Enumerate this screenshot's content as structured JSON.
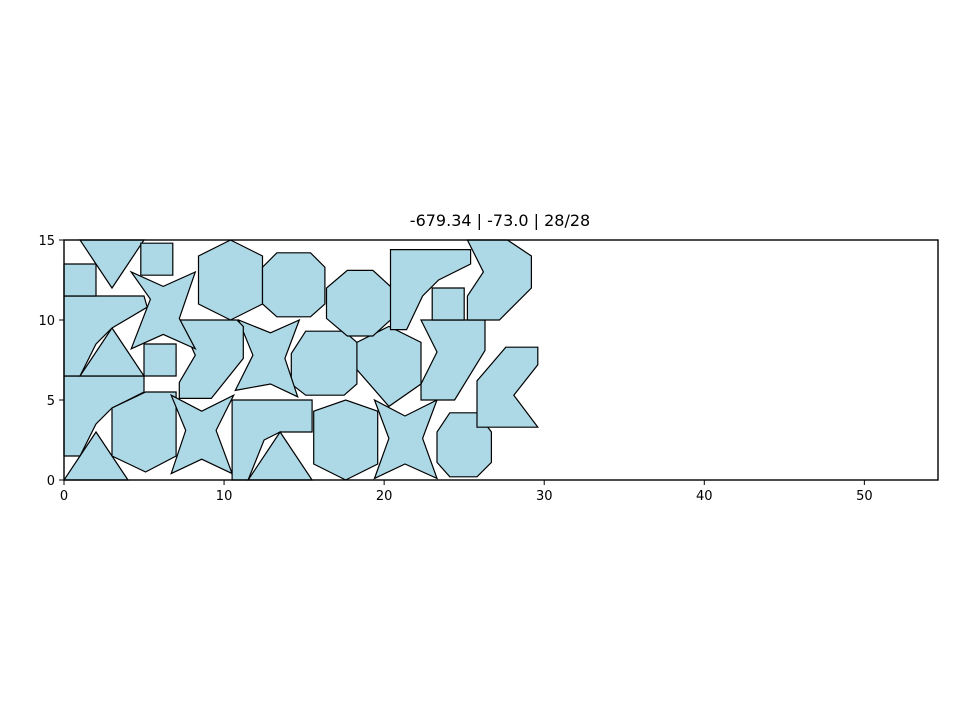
{
  "chart_data": {
    "type": "polygon-packing",
    "title": "-679.34 | -73.0 | 28/28",
    "xlabel": "",
    "ylabel": "",
    "xlim": [
      0,
      54.6
    ],
    "ylim": [
      0,
      15
    ],
    "xticks": [
      0,
      10,
      20,
      30,
      40,
      50
    ],
    "yticks": [
      0,
      5,
      10,
      15
    ],
    "grid": false,
    "colors": {
      "fill": "#add8e6",
      "edge": "#000000"
    },
    "shapes": [
      {
        "kind": "triangle",
        "points": [
          [
            0,
            0
          ],
          [
            4,
            0
          ],
          [
            2,
            3
          ]
        ]
      },
      {
        "kind": "l-shape",
        "points": [
          [
            0,
            1.5
          ],
          [
            0,
            6.5
          ],
          [
            5,
            6.5
          ],
          [
            5,
            5.5
          ],
          [
            3,
            4.5
          ],
          [
            2,
            3.5
          ],
          [
            1,
            1.5
          ]
        ]
      },
      {
        "kind": "hexagon",
        "points": [
          [
            3,
            4.5
          ],
          [
            3,
            1.5
          ],
          [
            5.1,
            0.5
          ],
          [
            7,
            1.5
          ],
          [
            7,
            5.5
          ],
          [
            5.1,
            5.5
          ]
        ]
      },
      {
        "kind": "star4",
        "points": [
          [
            6.7,
            0.4
          ],
          [
            8.6,
            1.3
          ],
          [
            10.5,
            0.4
          ],
          [
            9.5,
            3.1
          ],
          [
            10.6,
            5.3
          ],
          [
            8.6,
            4.3
          ],
          [
            6.7,
            5.3
          ],
          [
            7.6,
            3.1
          ]
        ]
      },
      {
        "kind": "l-shape",
        "points": [
          [
            10.5,
            0
          ],
          [
            10.5,
            5
          ],
          [
            15.5,
            5
          ],
          [
            15.5,
            3
          ],
          [
            13.5,
            3
          ],
          [
            12.5,
            2.5
          ],
          [
            11.5,
            0
          ]
        ]
      },
      {
        "kind": "triangle",
        "points": [
          [
            11.5,
            0
          ],
          [
            15.5,
            0
          ],
          [
            13.5,
            3
          ]
        ]
      },
      {
        "kind": "hexagon",
        "points": [
          [
            15.6,
            1
          ],
          [
            17.6,
            0
          ],
          [
            19.6,
            1
          ],
          [
            19.6,
            4.3
          ],
          [
            17.6,
            5
          ],
          [
            15.6,
            4.3
          ]
        ]
      },
      {
        "kind": "star4",
        "points": [
          [
            19.4,
            0.1
          ],
          [
            21.3,
            1
          ],
          [
            23.3,
            0.1
          ],
          [
            22.4,
            2.6
          ],
          [
            23.3,
            5
          ],
          [
            21.3,
            4
          ],
          [
            19.4,
            5
          ],
          [
            20.3,
            2.6
          ]
        ]
      },
      {
        "kind": "octagon",
        "points": [
          [
            23.3,
            1.1
          ],
          [
            24.1,
            0.2
          ],
          [
            25.8,
            0.2
          ],
          [
            26.7,
            1.1
          ],
          [
            26.7,
            3
          ],
          [
            25.8,
            4.2
          ],
          [
            24.1,
            4.2
          ],
          [
            23.3,
            3
          ]
        ]
      },
      {
        "kind": "chevron",
        "points": [
          [
            25.8,
            3.3
          ],
          [
            25.8,
            6.2
          ],
          [
            27.6,
            8.3
          ],
          [
            29.6,
            8.3
          ],
          [
            29.6,
            7.2
          ],
          [
            28.1,
            5.3
          ],
          [
            29.6,
            3.3
          ]
        ]
      },
      {
        "kind": "chevron",
        "points": [
          [
            22.3,
            5
          ],
          [
            22.3,
            6
          ],
          [
            23.3,
            8
          ],
          [
            22.3,
            10
          ],
          [
            26.3,
            10
          ],
          [
            26.3,
            8.1
          ],
          [
            24.4,
            5
          ]
        ]
      },
      {
        "kind": "hexagon",
        "points": [
          [
            18.3,
            6.9
          ],
          [
            18.3,
            8.6
          ],
          [
            20.3,
            9.6
          ],
          [
            22.3,
            8.6
          ],
          [
            22.3,
            6
          ],
          [
            20.3,
            4.6
          ]
        ]
      },
      {
        "kind": "octagon",
        "points": [
          [
            14.2,
            7.9
          ],
          [
            14.2,
            6
          ],
          [
            15.1,
            5.3
          ],
          [
            17.5,
            5.3
          ],
          [
            18.3,
            6
          ],
          [
            18.3,
            8.6
          ],
          [
            17.5,
            9.3
          ],
          [
            15.1,
            9.3
          ]
        ]
      },
      {
        "kind": "star4",
        "points": [
          [
            10.7,
            5.6
          ],
          [
            11.8,
            7.8
          ],
          [
            10.9,
            10
          ],
          [
            12.9,
            9.2
          ],
          [
            14.7,
            10
          ],
          [
            13.8,
            7.6
          ],
          [
            14.6,
            5.2
          ],
          [
            12.9,
            6
          ]
        ]
      },
      {
        "kind": "chevron",
        "points": [
          [
            7.2,
            5.1
          ],
          [
            7.2,
            6.1
          ],
          [
            8.2,
            7.8
          ],
          [
            7.2,
            10
          ],
          [
            10.8,
            10
          ],
          [
            11.2,
            9.6
          ],
          [
            11.2,
            7.6
          ],
          [
            9.2,
            5.1
          ]
        ]
      },
      {
        "kind": "square",
        "points": [
          [
            5,
            6.5
          ],
          [
            7,
            6.5
          ],
          [
            7,
            8.5
          ],
          [
            5,
            8.5
          ]
        ]
      },
      {
        "kind": "triangle",
        "points": [
          [
            1,
            6.5
          ],
          [
            5,
            6.5
          ],
          [
            3,
            9.5
          ]
        ]
      },
      {
        "kind": "l-shape",
        "points": [
          [
            0,
            6.5
          ],
          [
            0,
            11.5
          ],
          [
            5,
            11.5
          ],
          [
            5.2,
            10.8
          ],
          [
            3,
            9.5
          ],
          [
            2,
            8.5
          ],
          [
            1,
            6.5
          ]
        ]
      },
      {
        "kind": "square",
        "points": [
          [
            0,
            11.5
          ],
          [
            2,
            11.5
          ],
          [
            2,
            13.5
          ],
          [
            0,
            13.5
          ]
        ]
      },
      {
        "kind": "triangle",
        "points": [
          [
            1,
            15
          ],
          [
            5,
            15
          ],
          [
            3,
            12
          ]
        ]
      },
      {
        "kind": "square",
        "points": [
          [
            4.8,
            12.8
          ],
          [
            6.8,
            12.8
          ],
          [
            6.8,
            14.8
          ],
          [
            4.8,
            14.8
          ]
        ]
      },
      {
        "kind": "star4",
        "points": [
          [
            4.2,
            13
          ],
          [
            5.4,
            11.3
          ],
          [
            4.2,
            8.2
          ],
          [
            6.2,
            9.1
          ],
          [
            8.2,
            8.2
          ],
          [
            7.2,
            10.1
          ],
          [
            8.2,
            13
          ],
          [
            6.2,
            12.1
          ]
        ]
      },
      {
        "kind": "hexagon",
        "points": [
          [
            8.4,
            14
          ],
          [
            8.4,
            11
          ],
          [
            10.4,
            10
          ],
          [
            12.4,
            11
          ],
          [
            12.4,
            14
          ],
          [
            10.4,
            15
          ]
        ]
      },
      {
        "kind": "octagon",
        "points": [
          [
            12.4,
            13.3
          ],
          [
            12.4,
            11
          ],
          [
            13.3,
            10.2
          ],
          [
            15.4,
            10.2
          ],
          [
            16.3,
            11
          ],
          [
            16.3,
            13.3
          ],
          [
            15.4,
            14.2
          ],
          [
            13.3,
            14.2
          ]
        ]
      },
      {
        "kind": "octagon",
        "points": [
          [
            16.4,
            12
          ],
          [
            16.4,
            10.1
          ],
          [
            17.7,
            9
          ],
          [
            19.3,
            9
          ],
          [
            20.5,
            10.1
          ],
          [
            20.5,
            12
          ],
          [
            19.3,
            13.1
          ],
          [
            17.7,
            13.1
          ]
        ]
      },
      {
        "kind": "l-shape",
        "points": [
          [
            20.4,
            9.4
          ],
          [
            20.4,
            14.4
          ],
          [
            25.4,
            14.4
          ],
          [
            25.4,
            13.5
          ],
          [
            23.4,
            12.5
          ],
          [
            22.4,
            11.5
          ],
          [
            21.4,
            9.4
          ]
        ]
      },
      {
        "kind": "square",
        "points": [
          [
            23,
            10
          ],
          [
            25,
            10
          ],
          [
            25,
            12
          ],
          [
            23,
            12
          ]
        ]
      },
      {
        "kind": "chevron",
        "points": [
          [
            25.2,
            10
          ],
          [
            27.2,
            10
          ],
          [
            29.2,
            12
          ],
          [
            29.2,
            14
          ],
          [
            27.7,
            15
          ],
          [
            25.2,
            15
          ],
          [
            26.2,
            13
          ],
          [
            25.2,
            11.5
          ]
        ]
      }
    ]
  }
}
